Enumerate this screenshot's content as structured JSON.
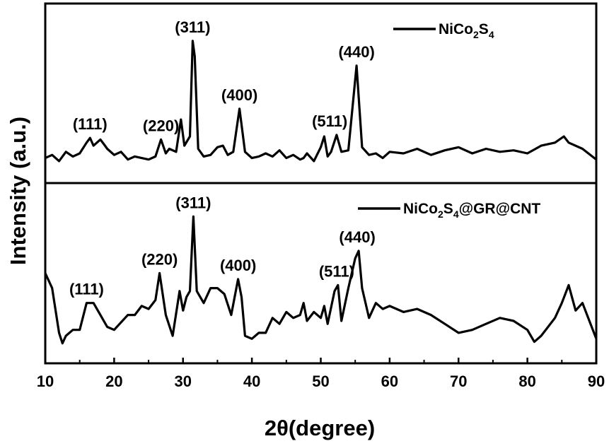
{
  "chart_data": {
    "type": "line",
    "xlabel": "2θ(degree)",
    "ylabel": "Intensity (a.u.)",
    "xlim": [
      10,
      90
    ],
    "xticks": [
      "10",
      "20",
      "30",
      "40",
      "50",
      "60",
      "70",
      "80",
      "90"
    ],
    "xtick_values": [
      10,
      20,
      30,
      40,
      50,
      60,
      70,
      80,
      90
    ],
    "ylim": [
      0,
      100
    ],
    "stacked_panels": 2,
    "grid": false,
    "series": [
      {
        "name": "NiCo",
        "name_sub1": "2",
        "name_mid": "S",
        "name_sub2": "4",
        "name_tail": "",
        "legend_position": "top-right",
        "x": [
          10,
          11,
          12,
          13,
          14,
          15,
          16,
          16.5,
          17,
          18,
          18.5,
          19,
          20,
          21,
          22,
          23,
          24,
          25,
          26,
          26.8,
          27.5,
          28,
          29,
          29.7,
          30.2,
          31,
          31.4,
          31.7,
          32.2,
          33,
          34,
          35,
          35.8,
          36.5,
          37.3,
          38.2,
          39,
          40,
          41,
          42,
          43,
          44,
          45,
          46,
          47,
          47.5,
          48,
          49,
          50,
          50.5,
          51,
          51.5,
          52.3,
          53,
          54,
          55.2,
          56,
          57,
          58,
          59,
          60,
          62,
          64,
          66,
          68,
          70,
          72,
          74,
          76,
          78,
          80,
          82,
          84,
          85.3,
          86,
          88,
          90
        ],
        "y": [
          8,
          10,
          6,
          12,
          9,
          11,
          18,
          21,
          16,
          20,
          17,
          14,
          10,
          12,
          7,
          9,
          8,
          7,
          9,
          20,
          11,
          14,
          12,
          33,
          16,
          22,
          84,
          74,
          14,
          9,
          10,
          15,
          16,
          10,
          12,
          40,
          12,
          8,
          9,
          11,
          9,
          13,
          8,
          10,
          7,
          8,
          11,
          6,
          15,
          22,
          9,
          12,
          23,
          12,
          13,
          68,
          15,
          10,
          11,
          8,
          12,
          11,
          14,
          10,
          13,
          15,
          11,
          14,
          12,
          13,
          11,
          16,
          18,
          22,
          18,
          14,
          7
        ],
        "peaks": [
          {
            "label": "(111)",
            "x": 16.5,
            "y": 21
          },
          {
            "label": "(220)",
            "x": 26.8,
            "y": 20
          },
          {
            "label": "(311)",
            "x": 31.4,
            "y": 84
          },
          {
            "label": "(400)",
            "x": 38.2,
            "y": 40
          },
          {
            "label": "(511)",
            "x": 51.3,
            "y": 23
          },
          {
            "label": "(440)",
            "x": 55.2,
            "y": 68
          }
        ]
      },
      {
        "name": "NiCo",
        "name_sub1": "2",
        "name_mid": "S",
        "name_sub2": "4",
        "name_tail": "@GR@CNT",
        "legend_position": "top-right",
        "x": [
          10,
          11,
          12,
          12.5,
          13,
          14,
          15,
          16,
          17,
          18,
          19,
          20,
          21,
          22,
          23,
          24,
          25,
          26,
          26.6,
          27.5,
          28.5,
          29.5,
          30,
          30.5,
          31,
          31.5,
          32,
          33,
          34,
          35,
          36,
          37,
          38,
          38.5,
          39,
          40,
          41,
          42,
          43,
          44,
          45,
          46,
          47,
          47.5,
          48,
          49,
          50,
          50.5,
          51,
          52,
          52.5,
          53,
          54,
          55,
          55.5,
          56,
          57,
          58,
          59,
          60,
          62,
          64,
          66,
          68,
          70,
          72,
          74,
          76,
          78,
          80,
          81,
          82,
          84,
          85,
          86,
          87,
          88,
          90
        ],
        "y": [
          50,
          40,
          10,
          3,
          8,
          12,
          12,
          30,
          30,
          22,
          14,
          12,
          17,
          22,
          22,
          28,
          26,
          32,
          50,
          22,
          8,
          38,
          25,
          34,
          38,
          88,
          38,
          30,
          40,
          40,
          36,
          22,
          46,
          34,
          8,
          6,
          10,
          10,
          20,
          16,
          24,
          20,
          22,
          30,
          18,
          24,
          20,
          28,
          16,
          38,
          42,
          18,
          40,
          60,
          65,
          40,
          20,
          30,
          26,
          28,
          24,
          26,
          22,
          16,
          10,
          12,
          16,
          20,
          18,
          12,
          4,
          8,
          20,
          30,
          42,
          25,
          30,
          6
        ],
        "peaks": [
          {
            "label": "(111)",
            "x": 16,
            "y": 30
          },
          {
            "label": "(220)",
            "x": 26.6,
            "y": 50
          },
          {
            "label": "(311)",
            "x": 31.5,
            "y": 88
          },
          {
            "label": "(400)",
            "x": 38,
            "y": 46
          },
          {
            "label": "(511)",
            "x": 52.3,
            "y": 42
          },
          {
            "label": "(440)",
            "x": 55.3,
            "y": 65
          }
        ]
      }
    ]
  }
}
